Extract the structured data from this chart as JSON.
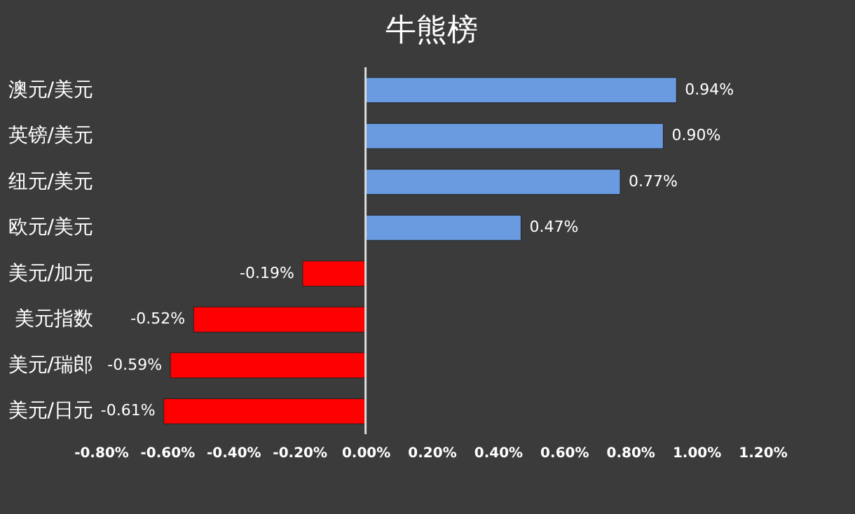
{
  "chart_data": {
    "type": "bar",
    "orientation": "horizontal",
    "title": "牛熊榜",
    "categories": [
      "澳元/美元",
      "英镑/美元",
      "纽元/美元",
      "欧元/美元",
      "美元/加元",
      "美元指数",
      "美元/瑞郎",
      "美元/日元"
    ],
    "values": [
      0.94,
      0.9,
      0.77,
      0.47,
      -0.19,
      -0.52,
      -0.59,
      -0.61
    ],
    "value_labels": [
      "0.94%",
      "0.90%",
      "0.77%",
      "0.47%",
      "-0.19%",
      "-0.52%",
      "-0.59%",
      "-0.61%"
    ],
    "colors": [
      "#6a9be0",
      "#6a9be0",
      "#6a9be0",
      "#6a9be0",
      "#ff0000",
      "#ff0000",
      "#ff0000",
      "#ff0000"
    ],
    "xlim": [
      -0.8,
      1.2
    ],
    "xticks": [
      {
        "value": -0.8,
        "label": "-0.80%"
      },
      {
        "value": -0.6,
        "label": "-0.60%"
      },
      {
        "value": -0.4,
        "label": "-0.40%"
      },
      {
        "value": -0.2,
        "label": "-0.20%"
      },
      {
        "value": 0,
        "label": "0.00%"
      },
      {
        "value": 0.2,
        "label": "0.20%"
      },
      {
        "value": 0.4,
        "label": "0.40%"
      },
      {
        "value": 0.6,
        "label": "0.60%"
      },
      {
        "value": 0.8,
        "label": "0.80%"
      },
      {
        "value": 1.0,
        "label": "1.00%"
      },
      {
        "value": 1.2,
        "label": "1.20%"
      }
    ],
    "ref_lines": [
      {
        "axis": "x",
        "value": 0,
        "color": "#dddddd"
      }
    ],
    "grid": false,
    "legend": false
  }
}
